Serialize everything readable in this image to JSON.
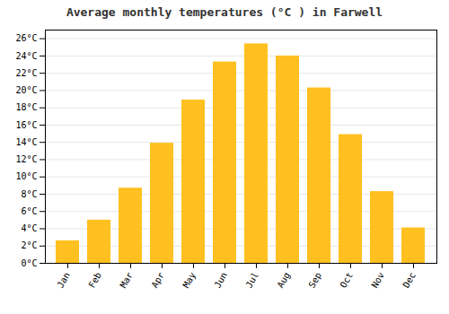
{
  "chart_data": {
    "type": "bar",
    "title": "Average monthly temperatures (°C ) in Farwell",
    "categories": [
      "Jan",
      "Feb",
      "Mar",
      "Apr",
      "May",
      "Jun",
      "Jul",
      "Aug",
      "Sep",
      "Oct",
      "Nov",
      "Dec"
    ],
    "values": [
      2.6,
      5.0,
      8.7,
      13.9,
      18.9,
      23.3,
      25.4,
      24.0,
      20.3,
      14.9,
      8.3,
      4.1
    ],
    "color": "#FFC020",
    "ylim": [
      0,
      27
    ],
    "yticks": [
      {
        "value": 0,
        "label": "0°C"
      },
      {
        "value": 2,
        "label": "2°C"
      },
      {
        "value": 4,
        "label": "4°C"
      },
      {
        "value": 6,
        "label": "6°C"
      },
      {
        "value": 8,
        "label": "8°C"
      },
      {
        "value": 10,
        "label": "10°C"
      },
      {
        "value": 12,
        "label": "12°C"
      },
      {
        "value": 14,
        "label": "14°C"
      },
      {
        "value": 16,
        "label": "16°C"
      },
      {
        "value": 18,
        "label": "18°C"
      },
      {
        "value": 20,
        "label": "20°C"
      },
      {
        "value": 22,
        "label": "22°C"
      },
      {
        "value": 24,
        "label": "24°C"
      },
      {
        "value": 26,
        "label": "26°C"
      }
    ],
    "grid": true
  }
}
